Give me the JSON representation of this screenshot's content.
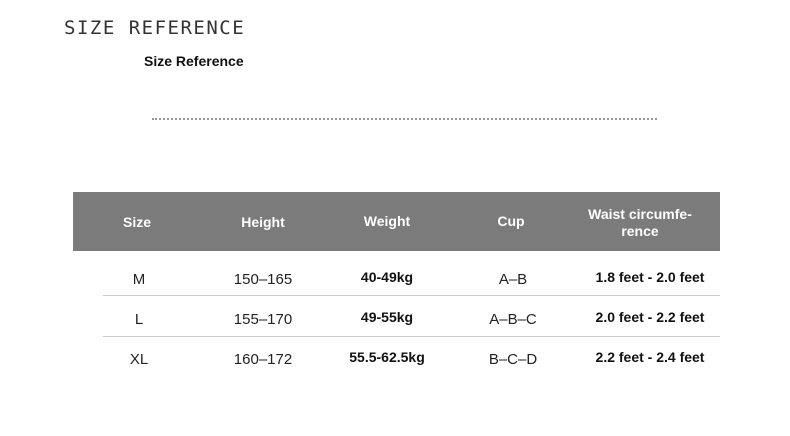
{
  "title": "SIZE REFERENCE",
  "subtitle": "Size Reference",
  "table": {
    "headers": [
      "Size",
      "Height",
      "Weight",
      "Cup",
      "Waist circumfe-\nrence"
    ],
    "header_lines": [
      "Waist circumfe-",
      "rence"
    ],
    "rows": [
      [
        "M",
        "150–165",
        "40-49kg",
        "A–B",
        "1.8 feet - 2.0 feet"
      ],
      [
        "L",
        "155–170",
        "49-55kg",
        "A–B–C",
        "2.0 feet - 2.2 feet"
      ],
      [
        "XL",
        "160–172",
        "55.5-62.5kg",
        "B–C–D",
        "2.2 feet - 2.4 feet"
      ]
    ]
  },
  "colors": {
    "header_bg": "#7b7b7b"
  }
}
